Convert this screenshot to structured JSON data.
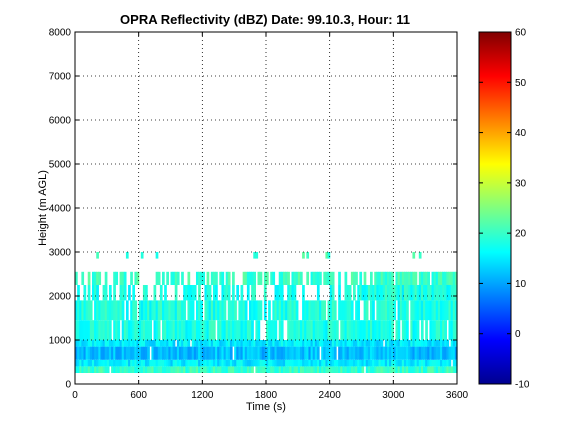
{
  "chart_data": {
    "type": "heatmap",
    "title": "OPRA Reflectivity (dBZ)  Date: 99.10.3, Hour: 11",
    "xlabel": "Time (s)",
    "ylabel": "Height (m AGL)",
    "xlim": [
      0,
      3600
    ],
    "ylim": [
      0,
      8000
    ],
    "xticks": [
      0,
      600,
      1200,
      1800,
      2400,
      3000,
      3600
    ],
    "yticks": [
      0,
      1000,
      2000,
      3000,
      4000,
      5000,
      6000,
      7000,
      8000
    ],
    "grid": true,
    "colorbar": {
      "colormap": "jet",
      "clim": [
        -10,
        60
      ],
      "ticks": [
        -10,
        0,
        10,
        20,
        30,
        40,
        50,
        60
      ]
    },
    "layers": [
      {
        "height_range": [
          250,
          400
        ],
        "dbz": 20
      },
      {
        "height_range": [
          400,
          550
        ],
        "dbz": 15
      },
      {
        "height_range": [
          550,
          850
        ],
        "dbz": 12
      },
      {
        "height_range": [
          850,
          1000
        ],
        "dbz": 15
      },
      {
        "height_range": [
          1000,
          1450
        ],
        "dbz": 18
      },
      {
        "height_range": [
          1450,
          1900
        ],
        "dbz": 18
      },
      {
        "height_range": [
          1900,
          2250
        ],
        "dbz": 18
      },
      {
        "height_range": [
          2250,
          2550
        ],
        "dbz": 20
      },
      {
        "height_range": [
          2850,
          3000
        ],
        "dbz": 20
      }
    ],
    "echo_top_approx_m": 2550,
    "gap_notes": "Clear air (no echo) above ~2600 m except isolated returns near 3000 m; upper echo layer between ~2000-2600 m is intermittent from 0-2600 s and more continuous after ~2800 s."
  }
}
